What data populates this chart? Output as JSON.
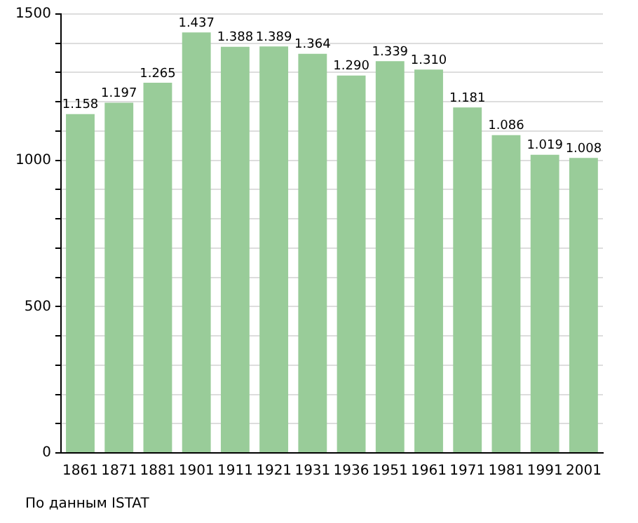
{
  "chart_data": {
    "type": "bar",
    "categories": [
      "1861",
      "1871",
      "1881",
      "1901",
      "1911",
      "1921",
      "1931",
      "1936",
      "1951",
      "1961",
      "1971",
      "1981",
      "1991",
      "2001"
    ],
    "values": [
      1158,
      1197,
      1265,
      1437,
      1388,
      1389,
      1364,
      1290,
      1339,
      1310,
      1181,
      1086,
      1019,
      1008
    ],
    "value_labels": [
      "1.158",
      "1.197",
      "1.265",
      "1.437",
      "1.388",
      "1.389",
      "1.364",
      "1.290",
      "1.339",
      "1.310",
      "1.181",
      "1.086",
      "1.019",
      "1.008"
    ],
    "color": "#99cc99",
    "ylim": [
      0,
      1500
    ],
    "yticks": [
      0,
      {
        "value": 100,
        "label": null
      },
      {
        "value": 200,
        "label": null
      },
      {
        "value": 300,
        "label": null
      },
      {
        "value": 400,
        "label": null
      },
      500,
      {
        "value": 600,
        "label": null
      },
      {
        "value": 700,
        "label": null
      },
      {
        "value": 800,
        "label": null
      },
      {
        "value": 900,
        "label": null
      },
      1000,
      {
        "value": 1100,
        "label": null
      },
      {
        "value": 1200,
        "label": null
      },
      {
        "value": 1300,
        "label": null
      },
      {
        "value": 1400,
        "label": null
      },
      1500
    ],
    "grid": "y",
    "legend": false,
    "annotations": [
      "По данным ISTAT"
    ]
  }
}
